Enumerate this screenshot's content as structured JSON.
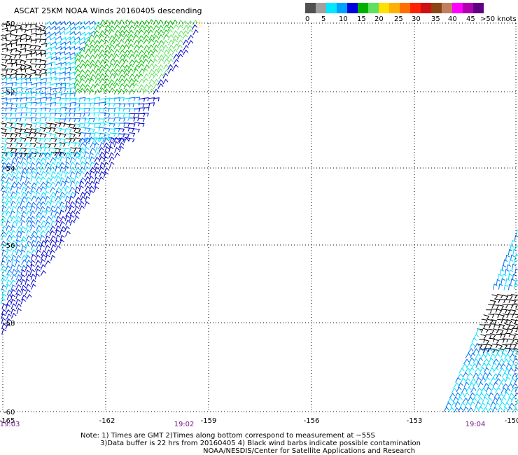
{
  "title": "ASCAT 25KM NOAA Winds 20160405 descending",
  "legend": {
    "unit": "knots",
    "labels": [
      "0",
      "5",
      "10",
      "15",
      "20",
      "25",
      "30",
      "35",
      "40",
      "45",
      ">50 knots"
    ],
    "colors": [
      "#505050",
      "#a0a0a0",
      "#00e8ff",
      "#00a0ff",
      "#0000e0",
      "#00b000",
      "#60e060",
      "#ffe000",
      "#ffb000",
      "#ff7000",
      "#ff2000",
      "#d01010",
      "#8b4513",
      "#c08060",
      "#ff00ff",
      "#b000b0",
      "#600080"
    ]
  },
  "map": {
    "lon_ticks": [
      "-165",
      "-162",
      "-159",
      "-156",
      "-153",
      "-150"
    ],
    "lat_ticks": [
      "-50",
      "-52",
      "-54",
      "-56",
      "-58",
      "-60"
    ],
    "time_labels": [
      "19:03",
      "19:02",
      "19:04"
    ],
    "gridline_color": "#000000",
    "barb_colors": {
      "contaminated": "#000000",
      "light": "#00e0ff",
      "moderate": "#0070ff",
      "strong": "#0000d0",
      "green": "#00c000",
      "lightgreen": "#60e060",
      "yellow": "#fff0a0"
    }
  },
  "notes": {
    "line1": "Note: 1) Times are GMT  2)Times along bottom correspond to measurement at ~55S",
    "line2": "3)Data buffer is 22 hrs from 20160405  4) Black wind barbs indicate possible contamination",
    "line3": "NOAA/NESDIS/Center for Satellite Applications and Research"
  }
}
